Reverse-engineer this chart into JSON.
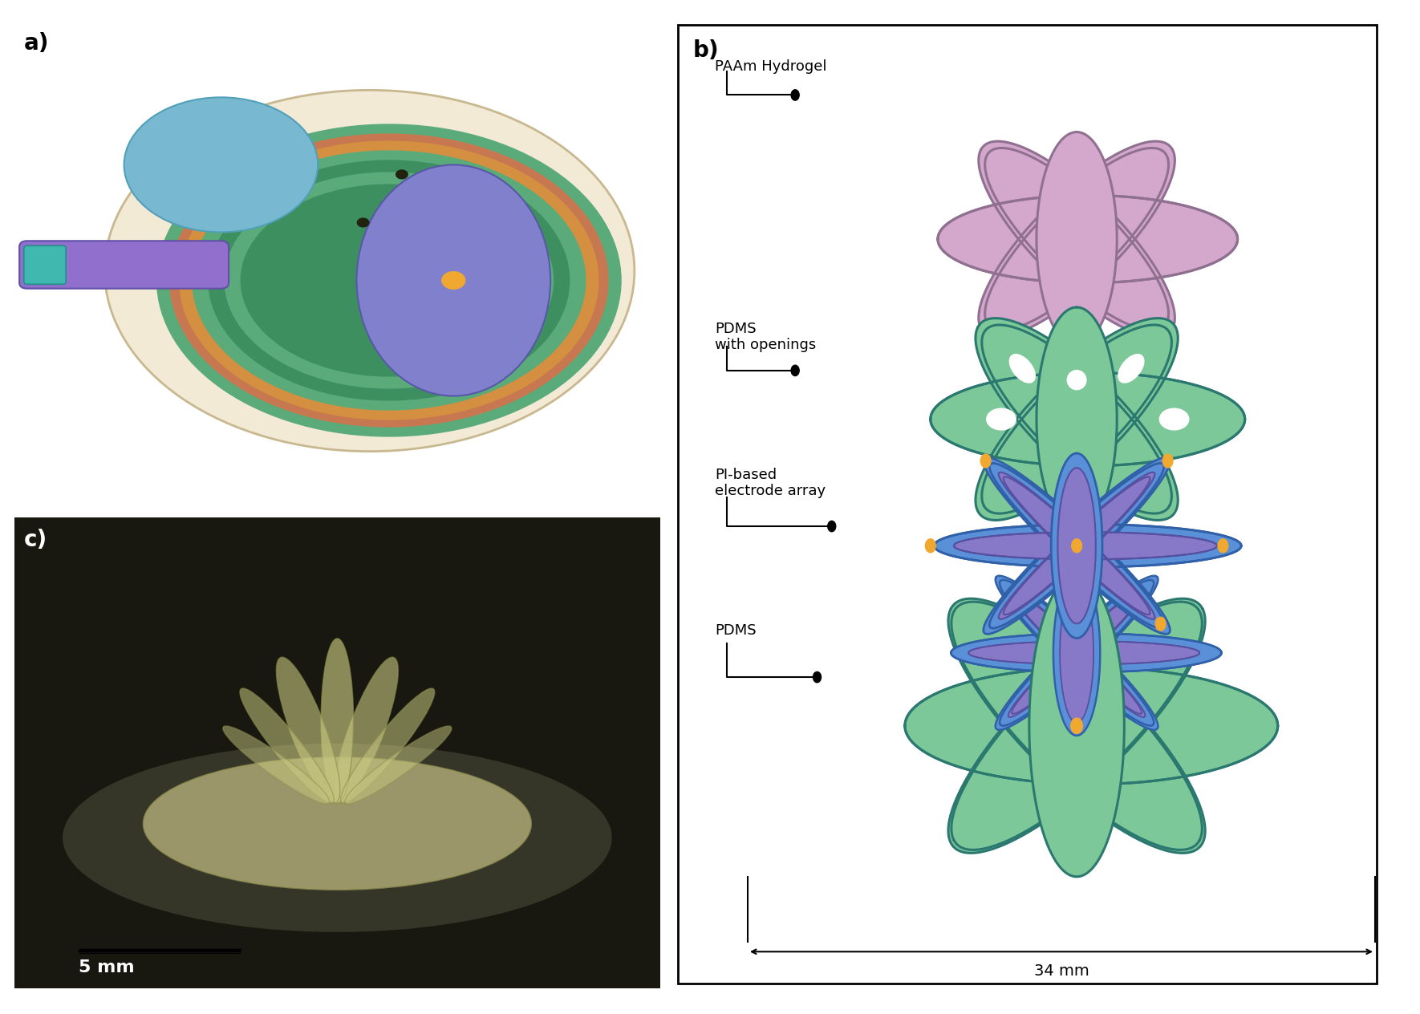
{
  "panel_a_bg": "#aac8d8",
  "panel_b_bg": "#ffffff",
  "colors": {
    "pink_fill": "#d4a8cc",
    "pink_edge": "#907090",
    "green_fill": "#7cc898",
    "green_edge": "#3a8868",
    "teal_edge": "#2a7870",
    "blue_fill": "#5a90d8",
    "blue_edge": "#3060a8",
    "purple_fill": "#8878c8",
    "purple_edge": "#5550a0",
    "orange_dot": "#f0a830",
    "white_hole": "#ffffff"
  },
  "labels": {
    "a": "a)",
    "b": "b)",
    "c": "c)",
    "paam": "PAAm Hydrogel",
    "pdms_open": "PDMS\nwith openings",
    "pi_array": "PI-based\nelectrode array",
    "pdms": "PDMS",
    "scale": "5 mm",
    "dim": "34 mm"
  }
}
